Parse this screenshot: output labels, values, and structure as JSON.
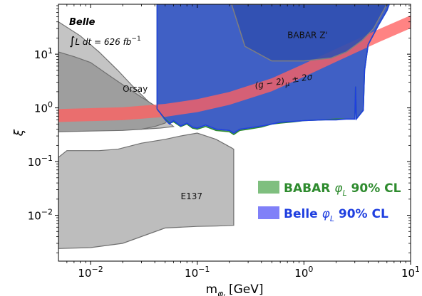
{
  "chart_data": {
    "type": "area",
    "xlabel": "m",
    "xlabel_sub": "φ",
    "xlabel_sub2": "l",
    "xlabel_unit": "[GeV]",
    "ylabel": "ξ",
    "xscale": "log",
    "yscale": "log",
    "xlim": [
      0.005,
      10
    ],
    "ylim": [
      0.0014,
      85
    ],
    "x_ticks": [
      {
        "value": 0.01,
        "base": "10",
        "exp": "−2"
      },
      {
        "value": 0.1,
        "base": "10",
        "exp": "−1"
      },
      {
        "value": 1,
        "base": "10",
        "exp": "0"
      },
      {
        "value": 10,
        "base": "10",
        "exp": "1"
      }
    ],
    "y_ticks": [
      {
        "value": 0.01,
        "base": "10",
        "exp": "−2"
      },
      {
        "value": 0.1,
        "base": "10",
        "exp": "−1"
      },
      {
        "value": 1,
        "base": "10",
        "exp": "0"
      },
      {
        "value": 10,
        "base": "10",
        "exp": "1"
      }
    ],
    "annotation": {
      "experiment": "Belle",
      "luminosity_integral": "∫",
      "luminosity_text": "L dt  =  626 fb",
      "luminosity_exp": "−1"
    },
    "regions": [
      {
        "label": "E137",
        "label_at": [
          0.07,
          0.02
        ],
        "fill": "#bdbdbd",
        "edge": "#6f6f6f",
        "points": [
          [
            0.005,
            0.0024
          ],
          [
            0.005,
            0.12
          ],
          [
            0.006,
            0.16
          ],
          [
            0.008,
            0.16
          ],
          [
            0.012,
            0.16
          ],
          [
            0.018,
            0.17
          ],
          [
            0.03,
            0.22
          ],
          [
            0.05,
            0.26
          ],
          [
            0.07,
            0.3
          ],
          [
            0.1,
            0.34
          ],
          [
            0.15,
            0.26
          ],
          [
            0.21,
            0.18
          ],
          [
            0.22,
            0.17
          ],
          [
            0.22,
            0.0065
          ],
          [
            0.15,
            0.0063
          ],
          [
            0.1,
            0.0062
          ],
          [
            0.05,
            0.0058
          ],
          [
            0.02,
            0.003
          ],
          [
            0.01,
            0.0025
          ],
          [
            0.005,
            0.0024
          ]
        ]
      },
      {
        "label": "",
        "fill": "#c4c4c4",
        "edge": "#6f6f6f",
        "points": [
          [
            0.005,
            0.1
          ],
          [
            0.005,
            40
          ],
          [
            0.008,
            22
          ],
          [
            0.012,
            11
          ],
          [
            0.018,
            5
          ],
          [
            0.025,
            2.5
          ],
          [
            0.035,
            1.3
          ],
          [
            0.045,
            0.8
          ],
          [
            0.05,
            0.6
          ],
          [
            0.06,
            0.45
          ],
          [
            0.045,
            0.42
          ],
          [
            0.03,
            0.4
          ],
          [
            0.015,
            0.4
          ],
          [
            0.005,
            0.4
          ]
        ]
      },
      {
        "label": "Orsay",
        "label_at": [
          0.02,
          2.0
        ],
        "fill": "#9e9e9e",
        "edge": "#6f6f6f",
        "points": [
          [
            0.005,
            0.36
          ],
          [
            0.005,
            11
          ],
          [
            0.007,
            9
          ],
          [
            0.01,
            7
          ],
          [
            0.015,
            4
          ],
          [
            0.025,
            2
          ],
          [
            0.04,
            1.1
          ],
          [
            0.05,
            0.8
          ],
          [
            0.055,
            0.65
          ],
          [
            0.05,
            0.52
          ],
          [
            0.04,
            0.45
          ],
          [
            0.03,
            0.4
          ],
          [
            0.02,
            0.38
          ],
          [
            0.01,
            0.37
          ],
          [
            0.005,
            0.36
          ]
        ]
      },
      {
        "label": "BABAR Z'",
        "label_at": [
          0.7,
          20
        ],
        "fill": "#3150b0",
        "edge": "#7f7f7f",
        "points": [
          [
            0.21,
            85
          ],
          [
            0.28,
            14
          ],
          [
            0.5,
            7.5
          ],
          [
            1.0,
            7.5
          ],
          [
            1.8,
            8.5
          ],
          [
            2.5,
            11
          ],
          [
            3.5,
            18
          ],
          [
            4.5,
            30
          ],
          [
            6.0,
            85
          ]
        ]
      }
    ],
    "band": {
      "label": "(g − 2)",
      "label_sub": "μ",
      "label_suffix": " ± 2σ",
      "label_at": [
        0.35,
        2.3
      ],
      "color": "#ff6060",
      "opacity": 0.78,
      "center": [
        [
          0.005,
          0.72
        ],
        [
          0.02,
          0.78
        ],
        [
          0.05,
          0.9
        ],
        [
          0.1,
          1.1
        ],
        [
          0.2,
          1.5
        ],
        [
          0.5,
          2.7
        ],
        [
          1,
          5
        ],
        [
          2,
          9.5
        ],
        [
          5,
          22
        ],
        [
          10,
          40
        ]
      ],
      "halfwidth_factor": 1.32
    },
    "series": [
      {
        "name": "BABAR",
        "name_symbol": "φ",
        "name_sub": "L",
        "name_suffix": "90% CL",
        "color": "#2e8b2e",
        "fill": "#7fbf7f",
        "x": [
          0.042,
          0.045,
          0.05,
          0.055,
          0.06,
          0.07,
          0.08,
          0.09,
          0.1,
          0.12,
          0.15,
          0.2,
          0.22,
          0.25,
          0.3,
          0.4,
          0.5,
          0.6,
          0.8,
          1.0,
          1.5,
          2.0,
          2.5,
          3.0,
          3.05,
          3.1,
          3.6,
          3.7,
          4.0,
          5.0,
          6.0,
          6.3
        ],
        "y": [
          0.95,
          0.8,
          0.62,
          0.52,
          0.55,
          0.45,
          0.5,
          0.42,
          0.4,
          0.45,
          0.38,
          0.36,
          0.32,
          0.38,
          0.4,
          0.44,
          0.5,
          0.52,
          0.55,
          0.58,
          0.6,
          0.62,
          0.62,
          0.62,
          2.5,
          0.63,
          0.9,
          5,
          15,
          35,
          65,
          85
        ]
      },
      {
        "name": "Belle",
        "name_symbol": "φ",
        "name_sub": "L",
        "name_suffix": "90% CL",
        "color": "#1f3fe0",
        "fill": "#8080f8",
        "x": [
          0.042,
          0.045,
          0.05,
          0.055,
          0.06,
          0.07,
          0.08,
          0.09,
          0.1,
          0.12,
          0.15,
          0.2,
          0.22,
          0.25,
          0.3,
          0.4,
          0.5,
          0.6,
          0.8,
          1.0,
          1.5,
          2.0,
          2.5,
          3.0,
          3.05,
          3.1,
          3.6,
          3.7,
          4.0,
          5.0,
          6.0,
          6.3
        ],
        "y": [
          0.95,
          0.8,
          0.6,
          0.5,
          0.58,
          0.46,
          0.52,
          0.44,
          0.42,
          0.48,
          0.4,
          0.38,
          0.34,
          0.4,
          0.42,
          0.46,
          0.5,
          0.54,
          0.56,
          0.58,
          0.6,
          0.6,
          0.62,
          0.62,
          2.5,
          0.62,
          0.9,
          5,
          15,
          35,
          65,
          85
        ]
      }
    ],
    "legend": {
      "placement": "center-right"
    },
    "colors": {
      "grey_edge": "#6f6f6f",
      "excluded_blue": "#3c5bc8",
      "band_red": "#ff6060"
    }
  }
}
